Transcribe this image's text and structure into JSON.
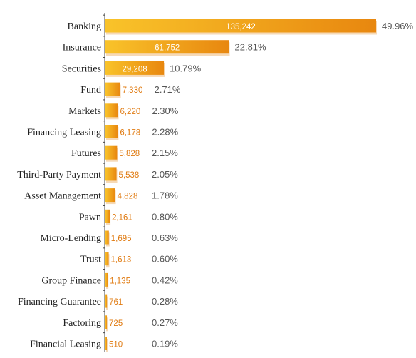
{
  "chart_data": {
    "type": "bar",
    "orientation": "horizontal",
    "title": "",
    "xlabel": "",
    "ylabel": "",
    "categories": [
      "Banking",
      "Insurance",
      "Securities",
      "Fund",
      "Markets",
      "Financing Leasing",
      "Futures",
      "Third-Party Payment",
      "Asset Management",
      "Pawn",
      "Micro-Lending",
      "Trust",
      "Group Finance",
      "Financing Guarantee",
      "Factoring",
      "Financial Leasing"
    ],
    "values": [
      135242,
      61752,
      29208,
      7330,
      6220,
      6178,
      5828,
      5538,
      4828,
      2161,
      1695,
      1613,
      1135,
      761,
      725,
      510
    ],
    "value_labels": [
      "135,242",
      "61,752",
      "29,208",
      "7,330",
      "6,220",
      "6,178",
      "5,828",
      "5,538",
      "4,828",
      "2,161",
      "1,695",
      "1,613",
      "1,135",
      "761",
      "725",
      "510"
    ],
    "percentages": [
      "49.96%",
      "22.81%",
      "10.79%",
      "2.71%",
      "2.30%",
      "2.28%",
      "2.15%",
      "2.05%",
      "1.78%",
      "0.80%",
      "0.63%",
      "0.60%",
      "0.42%",
      "0.28%",
      "0.27%",
      "0.19%"
    ],
    "xlim": [
      0,
      135242
    ],
    "grid": false,
    "legend": false,
    "colors": {
      "bar_light": "#f9c32a",
      "bar_dark": "#e8870f",
      "shadow": "#f6d9b6",
      "axis": "#444444",
      "inside_label": "#ffffff",
      "outside_label": "#e07b12",
      "percent_label": "#555555"
    }
  }
}
